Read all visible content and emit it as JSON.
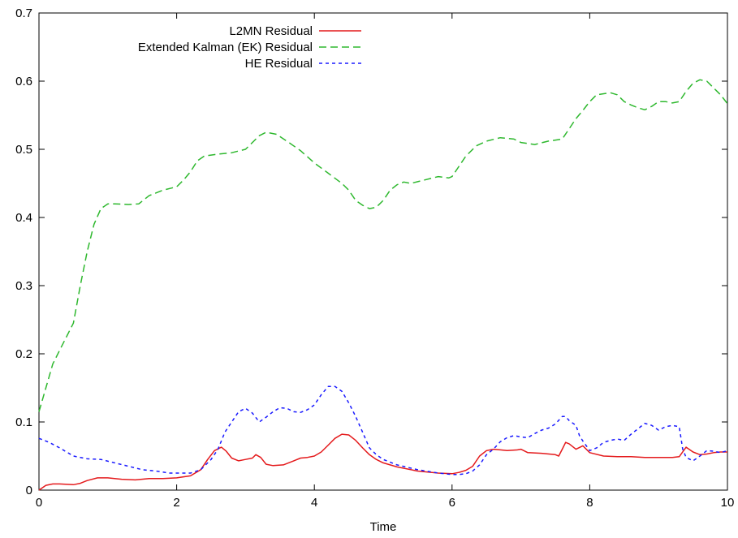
{
  "chart_data": {
    "type": "line",
    "title": "",
    "xlabel": "Time",
    "ylabel": "",
    "xlim": [
      0,
      10
    ],
    "ylim": [
      0,
      0.7
    ],
    "grid": false,
    "legend_position": "top-center",
    "x_ticks": [
      "0",
      "2",
      "4",
      "6",
      "8",
      "10"
    ],
    "y_ticks": [
      "0",
      "0.1",
      "0.2",
      "0.3",
      "0.4",
      "0.5",
      "0.6",
      "0.7"
    ],
    "series": [
      {
        "name": "L2MN Residual",
        "color": "#e41a1c",
        "style": "solid",
        "points": [
          [
            0,
            0
          ],
          [
            0.1,
            0.007
          ],
          [
            0.2,
            0.009
          ],
          [
            0.3,
            0.009
          ],
          [
            0.5,
            0.008
          ],
          [
            0.6,
            0.01
          ],
          [
            0.7,
            0.014
          ],
          [
            0.85,
            0.018
          ],
          [
            1.0,
            0.018
          ],
          [
            1.2,
            0.016
          ],
          [
            1.4,
            0.015
          ],
          [
            1.6,
            0.017
          ],
          [
            1.8,
            0.017
          ],
          [
            2.0,
            0.018
          ],
          [
            2.2,
            0.021
          ],
          [
            2.35,
            0.03
          ],
          [
            2.45,
            0.045
          ],
          [
            2.55,
            0.058
          ],
          [
            2.65,
            0.063
          ],
          [
            2.72,
            0.057
          ],
          [
            2.8,
            0.047
          ],
          [
            2.9,
            0.043
          ],
          [
            3.0,
            0.045
          ],
          [
            3.1,
            0.047
          ],
          [
            3.15,
            0.052
          ],
          [
            3.22,
            0.048
          ],
          [
            3.3,
            0.038
          ],
          [
            3.4,
            0.036
          ],
          [
            3.55,
            0.037
          ],
          [
            3.7,
            0.043
          ],
          [
            3.8,
            0.047
          ],
          [
            3.9,
            0.048
          ],
          [
            4.0,
            0.05
          ],
          [
            4.1,
            0.056
          ],
          [
            4.2,
            0.066
          ],
          [
            4.3,
            0.076
          ],
          [
            4.4,
            0.082
          ],
          [
            4.5,
            0.081
          ],
          [
            4.6,
            0.073
          ],
          [
            4.7,
            0.062
          ],
          [
            4.8,
            0.052
          ],
          [
            4.9,
            0.045
          ],
          [
            5.0,
            0.04
          ],
          [
            5.2,
            0.034
          ],
          [
            5.5,
            0.028
          ],
          [
            5.8,
            0.025
          ],
          [
            6.0,
            0.024
          ],
          [
            6.1,
            0.026
          ],
          [
            6.2,
            0.029
          ],
          [
            6.3,
            0.035
          ],
          [
            6.4,
            0.05
          ],
          [
            6.5,
            0.058
          ],
          [
            6.6,
            0.06
          ],
          [
            6.7,
            0.059
          ],
          [
            6.8,
            0.058
          ],
          [
            6.95,
            0.059
          ],
          [
            7.0,
            0.06
          ],
          [
            7.1,
            0.055
          ],
          [
            7.3,
            0.054
          ],
          [
            7.5,
            0.052
          ],
          [
            7.55,
            0.05
          ],
          [
            7.6,
            0.06
          ],
          [
            7.65,
            0.07
          ],
          [
            7.7,
            0.068
          ],
          [
            7.8,
            0.06
          ],
          [
            7.9,
            0.065
          ],
          [
            8.0,
            0.055
          ],
          [
            8.2,
            0.05
          ],
          [
            8.4,
            0.049
          ],
          [
            8.6,
            0.049
          ],
          [
            8.8,
            0.048
          ],
          [
            9.0,
            0.048
          ],
          [
            9.2,
            0.048
          ],
          [
            9.3,
            0.049
          ],
          [
            9.4,
            0.063
          ],
          [
            9.5,
            0.056
          ],
          [
            9.6,
            0.052
          ],
          [
            9.7,
            0.053
          ],
          [
            9.8,
            0.055
          ],
          [
            9.9,
            0.056
          ],
          [
            10.0,
            0.056
          ]
        ]
      },
      {
        "name": "Extended Kalman (EK) Residual",
        "color": "#2eb82e",
        "style": "dashed",
        "points": [
          [
            0,
            0.115
          ],
          [
            0.1,
            0.15
          ],
          [
            0.2,
            0.185
          ],
          [
            0.3,
            0.205
          ],
          [
            0.4,
            0.225
          ],
          [
            0.5,
            0.245
          ],
          [
            0.6,
            0.3
          ],
          [
            0.7,
            0.35
          ],
          [
            0.8,
            0.39
          ],
          [
            0.9,
            0.413
          ],
          [
            1.0,
            0.42
          ],
          [
            1.1,
            0.42
          ],
          [
            1.3,
            0.419
          ],
          [
            1.45,
            0.42
          ],
          [
            1.6,
            0.432
          ],
          [
            1.8,
            0.44
          ],
          [
            2.0,
            0.445
          ],
          [
            2.1,
            0.455
          ],
          [
            2.2,
            0.467
          ],
          [
            2.3,
            0.483
          ],
          [
            2.4,
            0.49
          ],
          [
            2.6,
            0.493
          ],
          [
            2.8,
            0.495
          ],
          [
            3.0,
            0.5
          ],
          [
            3.1,
            0.51
          ],
          [
            3.2,
            0.52
          ],
          [
            3.3,
            0.525
          ],
          [
            3.45,
            0.522
          ],
          [
            3.6,
            0.512
          ],
          [
            3.8,
            0.498
          ],
          [
            4.0,
            0.48
          ],
          [
            4.2,
            0.465
          ],
          [
            4.4,
            0.45
          ],
          [
            4.5,
            0.44
          ],
          [
            4.6,
            0.425
          ],
          [
            4.7,
            0.418
          ],
          [
            4.8,
            0.413
          ],
          [
            4.9,
            0.415
          ],
          [
            5.0,
            0.425
          ],
          [
            5.1,
            0.44
          ],
          [
            5.2,
            0.448
          ],
          [
            5.3,
            0.452
          ],
          [
            5.4,
            0.45
          ],
          [
            5.6,
            0.455
          ],
          [
            5.8,
            0.46
          ],
          [
            5.95,
            0.458
          ],
          [
            6.0,
            0.46
          ],
          [
            6.1,
            0.475
          ],
          [
            6.2,
            0.49
          ],
          [
            6.35,
            0.505
          ],
          [
            6.5,
            0.512
          ],
          [
            6.7,
            0.517
          ],
          [
            6.9,
            0.515
          ],
          [
            7.0,
            0.51
          ],
          [
            7.2,
            0.507
          ],
          [
            7.4,
            0.512
          ],
          [
            7.6,
            0.515
          ],
          [
            7.7,
            0.53
          ],
          [
            7.8,
            0.545
          ],
          [
            7.9,
            0.557
          ],
          [
            8.0,
            0.57
          ],
          [
            8.1,
            0.58
          ],
          [
            8.3,
            0.583
          ],
          [
            8.4,
            0.58
          ],
          [
            8.5,
            0.57
          ],
          [
            8.6,
            0.565
          ],
          [
            8.7,
            0.561
          ],
          [
            8.8,
            0.558
          ],
          [
            8.9,
            0.563
          ],
          [
            9.0,
            0.57
          ],
          [
            9.1,
            0.57
          ],
          [
            9.2,
            0.568
          ],
          [
            9.3,
            0.57
          ],
          [
            9.4,
            0.585
          ],
          [
            9.5,
            0.597
          ],
          [
            9.6,
            0.602
          ],
          [
            9.7,
            0.6
          ],
          [
            9.8,
            0.59
          ],
          [
            9.9,
            0.58
          ],
          [
            10.0,
            0.567
          ]
        ]
      },
      {
        "name": "HE Residual",
        "color": "#1a1aff",
        "style": "dotted",
        "points": [
          [
            0,
            0.076
          ],
          [
            0.15,
            0.07
          ],
          [
            0.3,
            0.062
          ],
          [
            0.5,
            0.05
          ],
          [
            0.7,
            0.046
          ],
          [
            0.9,
            0.045
          ],
          [
            1.1,
            0.04
          ],
          [
            1.3,
            0.035
          ],
          [
            1.5,
            0.03
          ],
          [
            1.7,
            0.028
          ],
          [
            1.9,
            0.025
          ],
          [
            2.1,
            0.025
          ],
          [
            2.2,
            0.025
          ],
          [
            2.35,
            0.03
          ],
          [
            2.5,
            0.045
          ],
          [
            2.6,
            0.06
          ],
          [
            2.7,
            0.085
          ],
          [
            2.8,
            0.1
          ],
          [
            2.9,
            0.115
          ],
          [
            3.0,
            0.12
          ],
          [
            3.1,
            0.113
          ],
          [
            3.2,
            0.1
          ],
          [
            3.3,
            0.107
          ],
          [
            3.4,
            0.115
          ],
          [
            3.5,
            0.121
          ],
          [
            3.6,
            0.12
          ],
          [
            3.7,
            0.115
          ],
          [
            3.8,
            0.114
          ],
          [
            3.9,
            0.118
          ],
          [
            4.0,
            0.125
          ],
          [
            4.1,
            0.14
          ],
          [
            4.2,
            0.152
          ],
          [
            4.3,
            0.152
          ],
          [
            4.4,
            0.145
          ],
          [
            4.5,
            0.128
          ],
          [
            4.6,
            0.108
          ],
          [
            4.7,
            0.085
          ],
          [
            4.8,
            0.062
          ],
          [
            4.9,
            0.052
          ],
          [
            5.0,
            0.045
          ],
          [
            5.2,
            0.037
          ],
          [
            5.5,
            0.03
          ],
          [
            5.8,
            0.025
          ],
          [
            6.0,
            0.023
          ],
          [
            6.1,
            0.023
          ],
          [
            6.2,
            0.024
          ],
          [
            6.3,
            0.028
          ],
          [
            6.4,
            0.037
          ],
          [
            6.5,
            0.052
          ],
          [
            6.6,
            0.06
          ],
          [
            6.7,
            0.071
          ],
          [
            6.8,
            0.077
          ],
          [
            6.9,
            0.08
          ],
          [
            7.0,
            0.078
          ],
          [
            7.1,
            0.077
          ],
          [
            7.2,
            0.083
          ],
          [
            7.3,
            0.088
          ],
          [
            7.4,
            0.091
          ],
          [
            7.5,
            0.097
          ],
          [
            7.6,
            0.108
          ],
          [
            7.65,
            0.108
          ],
          [
            7.7,
            0.102
          ],
          [
            7.8,
            0.095
          ],
          [
            7.85,
            0.08
          ],
          [
            7.9,
            0.072
          ],
          [
            8.0,
            0.058
          ],
          [
            8.1,
            0.062
          ],
          [
            8.2,
            0.07
          ],
          [
            8.3,
            0.073
          ],
          [
            8.4,
            0.075
          ],
          [
            8.5,
            0.073
          ],
          [
            8.6,
            0.082
          ],
          [
            8.7,
            0.09
          ],
          [
            8.8,
            0.098
          ],
          [
            8.9,
            0.095
          ],
          [
            9.0,
            0.088
          ],
          [
            9.1,
            0.093
          ],
          [
            9.2,
            0.095
          ],
          [
            9.3,
            0.093
          ],
          [
            9.35,
            0.06
          ],
          [
            9.4,
            0.048
          ],
          [
            9.5,
            0.043
          ],
          [
            9.6,
            0.05
          ],
          [
            9.7,
            0.058
          ],
          [
            9.8,
            0.057
          ],
          [
            9.9,
            0.055
          ],
          [
            10.0,
            0.058
          ]
        ]
      }
    ]
  }
}
